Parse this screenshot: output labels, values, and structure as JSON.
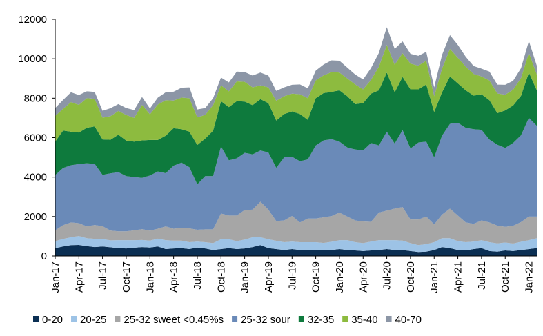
{
  "chart_data": {
    "type": "area",
    "stacked": true,
    "title": "",
    "xlabel": "",
    "ylabel": "",
    "ylim": [
      0,
      12000
    ],
    "y_ticks": [
      0,
      2000,
      4000,
      6000,
      8000,
      10000,
      12000
    ],
    "y_tick_labels": [
      "0",
      "2000",
      "4000",
      "6000",
      "8000",
      "10000",
      "12000"
    ],
    "x_tick_labels": [
      "Jan-17",
      "Apr-17",
      "Jul-17",
      "Oct-17",
      "Jan-18",
      "Apr-18",
      "Jul-18",
      "Oct-18",
      "Jan-19",
      "Apr-19",
      "Jul-19",
      "Oct-19",
      "Jan-20",
      "Apr-20",
      "Jul-20",
      "Oct-20",
      "Jan-21",
      "Apr-21",
      "Jul-21",
      "Oct-21",
      "Jan-22"
    ],
    "grid": false,
    "legend_position": "bottom",
    "x": [
      "Jan-17",
      "Feb-17",
      "Mar-17",
      "Apr-17",
      "May-17",
      "Jun-17",
      "Jul-17",
      "Aug-17",
      "Sep-17",
      "Oct-17",
      "Nov-17",
      "Dec-17",
      "Jan-18",
      "Feb-18",
      "Mar-18",
      "Apr-18",
      "May-18",
      "Jun-18",
      "Jul-18",
      "Aug-18",
      "Sep-18",
      "Oct-18",
      "Nov-18",
      "Dec-18",
      "Jan-19",
      "Feb-19",
      "Mar-19",
      "Apr-19",
      "May-19",
      "Jun-19",
      "Jul-19",
      "Aug-19",
      "Sep-19",
      "Oct-19",
      "Nov-19",
      "Dec-19",
      "Jan-20",
      "Feb-20",
      "Mar-20",
      "Apr-20",
      "May-20",
      "Jun-20",
      "Jul-20",
      "Aug-20",
      "Sep-20",
      "Oct-20",
      "Nov-20",
      "Dec-20",
      "Jan-21",
      "Feb-21",
      "Mar-21",
      "Apr-21",
      "May-21",
      "Jun-21",
      "Jul-21",
      "Aug-21",
      "Sep-21",
      "Oct-21",
      "Nov-21",
      "Dec-21",
      "Jan-22",
      "Feb-22"
    ],
    "series": [
      {
        "name": "0-20",
        "color": "#0b2f53",
        "values": [
          400,
          480,
          550,
          560,
          500,
          450,
          480,
          440,
          400,
          380,
          420,
          450,
          430,
          480,
          350,
          380,
          400,
          350,
          430,
          380,
          300,
          350,
          400,
          350,
          380,
          450,
          550,
          400,
          350,
          300,
          350,
          300,
          280,
          300,
          280,
          300,
          350,
          300,
          280,
          250,
          280,
          300,
          350,
          300,
          300,
          250,
          200,
          220,
          300,
          450,
          400,
          300,
          280,
          350,
          400,
          250,
          220,
          280,
          250,
          300,
          350,
          400
        ]
      },
      {
        "name": "20-25",
        "color": "#9dc3e6",
        "values": [
          350,
          380,
          400,
          450,
          400,
          420,
          380,
          350,
          400,
          420,
          380,
          360,
          350,
          400,
          450,
          400,
          380,
          350,
          300,
          320,
          350,
          500,
          450,
          400,
          450,
          500,
          400,
          450,
          420,
          400,
          380,
          400,
          420,
          400,
          380,
          420,
          450,
          500,
          420,
          400,
          450,
          500,
          450,
          500,
          480,
          400,
          350,
          380,
          400,
          450,
          500,
          450,
          420,
          380,
          400,
          450,
          420,
          400,
          380,
          420,
          450,
          500
        ]
      },
      {
        "name": "25-32 sweet <0.45%s",
        "color": "#a6a6a6",
        "values": [
          550,
          700,
          750,
          650,
          600,
          700,
          650,
          500,
          450,
          450,
          500,
          550,
          500,
          500,
          700,
          600,
          650,
          700,
          600,
          650,
          700,
          1300,
          1200,
          1300,
          1500,
          1400,
          1800,
          1500,
          1000,
          1100,
          1300,
          1000,
          1200,
          1200,
          1300,
          1300,
          1400,
          1200,
          1100,
          1100,
          1000,
          1400,
          1500,
          1600,
          1700,
          1200,
          1300,
          1400,
          900,
          1200,
          1500,
          1300,
          1000,
          900,
          1000,
          1000,
          900,
          800,
          900,
          1000,
          1200,
          1100
        ]
      },
      {
        "name": "25-32 sour",
        "color": "#6a8ab8",
        "values": [
          2800,
          2900,
          2900,
          3000,
          3200,
          3100,
          2600,
          2900,
          3000,
          2800,
          2700,
          2600,
          2800,
          2900,
          2700,
          3200,
          3300,
          3100,
          2300,
          2700,
          2700,
          3400,
          2800,
          2900,
          2900,
          2800,
          2600,
          2900,
          2700,
          3200,
          3000,
          3100,
          3000,
          3700,
          3900,
          3900,
          3600,
          3500,
          3600,
          3600,
          4000,
          3400,
          4000,
          3300,
          3900,
          3600,
          3900,
          3800,
          3400,
          4000,
          4300,
          4700,
          4800,
          4800,
          4600,
          4200,
          4100,
          4000,
          4200,
          4400,
          5000,
          4600
        ]
      },
      {
        "name": "32-35",
        "color": "#0e7a3d",
        "values": [
          1700,
          1900,
          1700,
          1600,
          1800,
          1900,
          1800,
          1700,
          1900,
          1800,
          1800,
          1900,
          1800,
          1600,
          1900,
          1900,
          1700,
          1800,
          2000,
          1900,
          2300,
          2300,
          2700,
          2900,
          2600,
          2500,
          2600,
          2500,
          2400,
          2200,
          2300,
          2400,
          2000,
          2400,
          2400,
          2400,
          2600,
          2600,
          2300,
          2400,
          2500,
          2800,
          3000,
          2600,
          2700,
          3000,
          2700,
          2900,
          2300,
          2200,
          2400,
          2000,
          1900,
          1700,
          1800,
          2000,
          1600,
          1900,
          1900,
          2000,
          2300,
          1800
        ]
      },
      {
        "name": "35-40",
        "color": "#8dbb3f",
        "values": [
          1300,
          1100,
          1500,
          1400,
          1500,
          1400,
          1100,
          1200,
          1200,
          1300,
          1200,
          1800,
          1300,
          1800,
          1800,
          1400,
          1600,
          1700,
          1400,
          1200,
          1300,
          800,
          800,
          1000,
          1000,
          900,
          700,
          800,
          1000,
          900,
          900,
          1000,
          1100,
          900,
          900,
          1000,
          900,
          900,
          1000,
          700,
          700,
          1200,
          1400,
          1400,
          1200,
          1300,
          1200,
          1200,
          800,
          1200,
          1400,
          1300,
          1200,
          1100,
          900,
          1000,
          1000,
          800,
          800,
          900,
          1000,
          800
        ]
      },
      {
        "name": "40-70",
        "color": "#8c96a6",
        "values": [
          400,
          450,
          500,
          500,
          350,
          350,
          350,
          400,
          350,
          350,
          400,
          400,
          300,
          350,
          400,
          450,
          500,
          550,
          400,
          350,
          350,
          400,
          450,
          500,
          500,
          600,
          650,
          600,
          500,
          450,
          450,
          500,
          500,
          500,
          550,
          600,
          600,
          550,
          500,
          500,
          600,
          700,
          900,
          800,
          600,
          500,
          500,
          450,
          450,
          700,
          700,
          650,
          500,
          400,
          400,
          450,
          450,
          500,
          450,
          500,
          600,
          450
        ]
      }
    ]
  }
}
